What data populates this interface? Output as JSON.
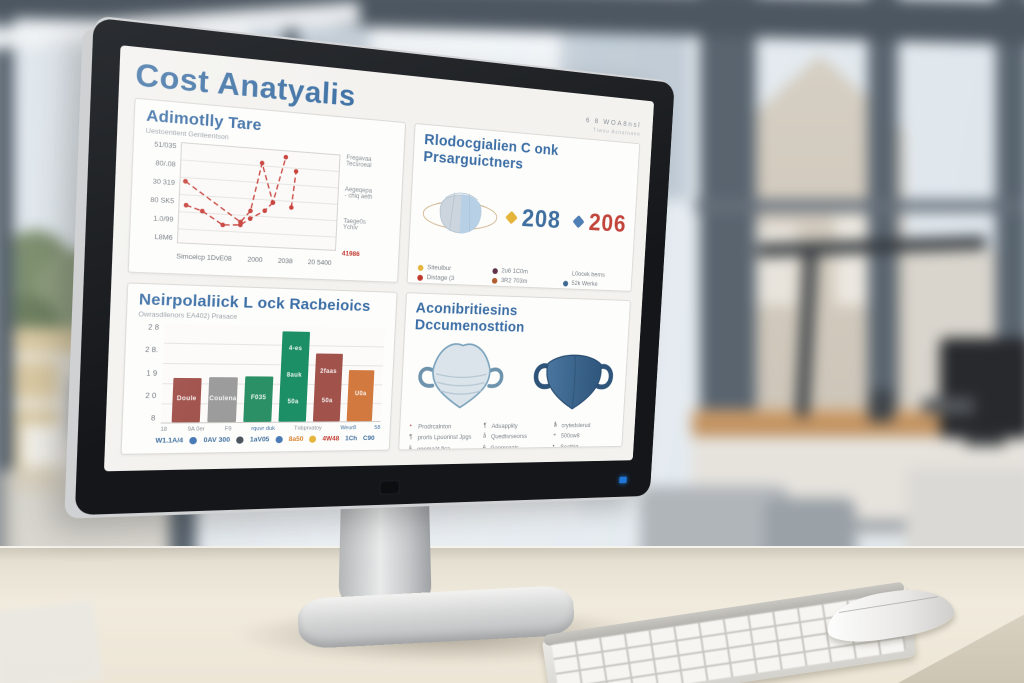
{
  "scene": {
    "description": "Office desk photo: desktop monitor showing a cost analysis dashboard, wireless keyboard and mouse, blurred window wall behind",
    "monitor": {
      "power_led_color": "#1f78d8"
    }
  },
  "screen": {
    "title": "Cost Anatyalis",
    "accent_color": "#4173a6",
    "status": {
      "line1": "6 8 WOA8nsl",
      "line2": "Tiwou Asnatnane"
    }
  },
  "cards": {
    "trend": {
      "title": "Adimotlly Tare",
      "subtitle": "Uestoentient Genteentson"
    },
    "mask_stats": {
      "title": "Rlodocgialien C onk Prsarguictners"
    },
    "bars": {
      "title": "Neirpolaliick L ock Racbeioics",
      "subtitle": "Owrasdilenors EA402) Prasace"
    },
    "docs": {
      "title": "Aconibritiesins Dccumenosttion"
    }
  },
  "chart_data": [
    {
      "type": "line",
      "title": "Adimotlly Tare",
      "y_ticks": [
        "51/035",
        "80/.08",
        "30 319",
        "80 SK5",
        "1.0/99",
        "L8M6"
      ],
      "x_ticks": [
        "Simcelcp 1DvE08",
        "2000",
        "2038",
        "20 5400"
      ],
      "line_color": "#c8423c",
      "dashed": true,
      "grid": true,
      "series": [
        {
          "name": "main",
          "points": [
            [
              3,
              38
            ],
            [
              38,
              76
            ],
            [
              44,
              64
            ],
            [
              50,
              14
            ],
            [
              58,
              54
            ],
            [
              65,
              6
            ]
          ]
        },
        {
          "name": "low",
          "points": [
            [
              4,
              62
            ],
            [
              14,
              67
            ],
            [
              27,
              80
            ],
            [
              38,
              79
            ],
            [
              44,
              72
            ],
            [
              53,
              63
            ],
            [
              58,
              54
            ]
          ]
        },
        {
          "name": "tail",
          "points": [
            [
              70,
              58
            ],
            [
              72,
              20
            ]
          ]
        }
      ],
      "right_notes": [
        [
          "Fregavaa",
          "Tecsroeal"
        ],
        [
          "Aegeqepa",
          "- chiq aeth"
        ],
        [
          "Taege0s",
          "Ychiv"
        ]
      ],
      "right_note_red": "41986"
    },
    {
      "type": "stat",
      "title": "Rlodocgialien C onk Prsarguictners",
      "stats": [
        {
          "value": "208",
          "diamond": "#e4b53a",
          "color": "#3f6f9e"
        },
        {
          "value": "206",
          "diamond": "#4f7fb5",
          "color": "#c2453c"
        }
      ],
      "legend": [
        {
          "dot": "#e4b53a",
          "label": "Siteulbur"
        },
        {
          "dot": "#5f3347",
          "label": "2u6 1C0m"
        },
        {
          "dot": null,
          "label": "L0ocek berns"
        },
        {
          "dot": "#c0392f",
          "label": "Distage (3"
        },
        {
          "dot": "#b05c2e",
          "label": "3R2 703m"
        },
        {
          "dot": "#3f6a92",
          "label": "52k Werke"
        }
      ]
    },
    {
      "type": "bar",
      "title": "Neirpolaliick L ock Racbeioics",
      "y_ticks": [
        "2 8",
        "2 8.",
        "1 9",
        "2 0",
        "8"
      ],
      "bars": [
        {
          "value": 45,
          "color": "#a2544e",
          "labels": [
            "Doule"
          ]
        },
        {
          "value": 46,
          "color": "#9c9c9c",
          "labels": [
            "Coulena"
          ]
        },
        {
          "value": 47,
          "color": "#2c9066",
          "labels": [
            "F035"
          ]
        },
        {
          "value": 95,
          "color": "#1d8f66",
          "labels": [
            "4-es",
            "8auk",
            "50a"
          ]
        },
        {
          "value": 72,
          "color": "#a0524b",
          "labels": [
            "2faas",
            "50a"
          ]
        },
        {
          "value": 55,
          "color": "#d2793f",
          "labels": [
            "U0a"
          ]
        }
      ],
      "x_ticks": [
        {
          "t": "18",
          "c": "#8a9096"
        },
        {
          "t": "9A 0er",
          "c": "#8a9096"
        },
        {
          "t": "F9",
          "c": "#8a9096"
        },
        {
          "t": "rquvr duk",
          "c": "#3f6f9e"
        },
        {
          "t": "Tnbprvatoy",
          "c": "#8a9096"
        },
        {
          "t": "Weur8",
          "c": "#3f6f9e"
        },
        {
          "t": "58",
          "c": "#3f6f9e"
        }
      ],
      "footer": [
        {
          "t": "W1.1A/4",
          "c": "#3f6f9e"
        },
        {
          "icon": "#4a7ab5"
        },
        {
          "t": "0AV 300",
          "c": "#3f6f9e"
        },
        {
          "icon": "#4a5560"
        },
        {
          "t": "1aV05",
          "c": "#3f6f9e"
        },
        {
          "icon": "#4a7ab5"
        },
        {
          "t": "8a50",
          "c": "#d9822b"
        },
        {
          "icon": "#e4b53a"
        },
        {
          "t": "4W48",
          "c": "#c0392f"
        },
        {
          "t": "1Ch",
          "c": "#3f6f9e"
        },
        {
          "t": "C90",
          "c": "#3f6f9e"
        }
      ]
    }
  ],
  "doc_lists": {
    "columns": [
      [
        {
          "b": "•",
          "c": "#b0413a",
          "t": "Prodrcalnton"
        },
        {
          "b": "¶",
          "c": "#6f757b",
          "t": "prorls Lpuorinst Jpgs"
        },
        {
          "b": "å",
          "c": "#6f757b",
          "t": "opcmaàt fica"
        }
      ],
      [
        {
          "b": "¶",
          "c": "#6f757b",
          "t": "Aduapplity"
        },
        {
          "b": "å",
          "c": "#6f757b",
          "t": "Quedtsrseorss"
        },
        {
          "b": "A",
          "c": "#6f757b",
          "t": "Gaomsgats."
        }
      ],
      [
        {
          "b": "å",
          "c": "#444a50",
          "t": "crytedslerud"
        },
        {
          "b": "+",
          "c": "#6f757b",
          "t": "500ow8"
        },
        {
          "b": "•",
          "c": "#6f757b",
          "t": "Seathig"
        }
      ]
    ]
  }
}
